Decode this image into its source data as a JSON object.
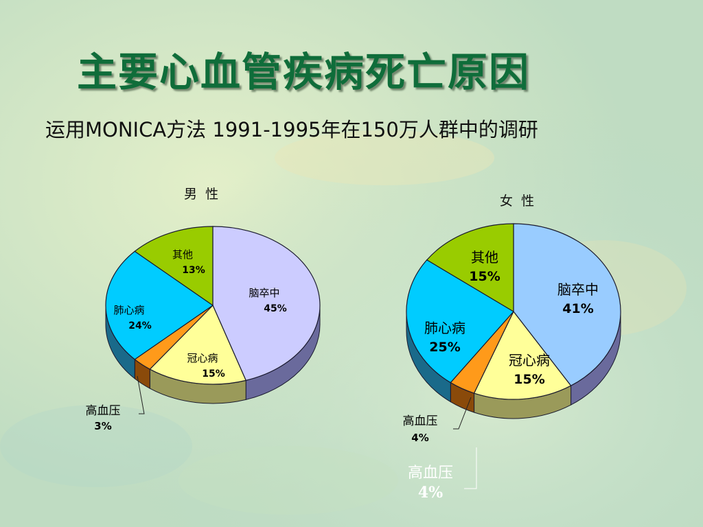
{
  "title": "主要心血管疾病死亡原因",
  "subtitle": "运用MONICA方法 1991-1995年在150万人群中的调研",
  "colors": {
    "title": "#0f6d3a",
    "stroke": "#1a1a2e",
    "callout_line": "#222222"
  },
  "chart_data": [
    {
      "type": "pie",
      "title": "男  性",
      "slices": [
        {
          "label": "脑卒中",
          "value": 45,
          "display": "45%",
          "color": "#ccccff",
          "side": "#6a6a9c"
        },
        {
          "label": "冠心病",
          "value": 15,
          "display": "15%",
          "color": "#ffff99",
          "side": "#9a9a5a"
        },
        {
          "label": "高血压",
          "value": 3,
          "display": "3%",
          "color": "#ff9a1a",
          "side": "#8a4a0a"
        },
        {
          "label": "肺心病",
          "value": 24,
          "display": "24%",
          "color": "#00ccff",
          "side": "#1a6a8a"
        },
        {
          "label": "其他",
          "value": 13,
          "display": "13%",
          "color": "#99cc00",
          "side": "#5a7a0a"
        }
      ]
    },
    {
      "type": "pie",
      "title": "女  性",
      "slices": [
        {
          "label": "脑卒中",
          "value": 41,
          "display": "41%",
          "color": "#99ccff",
          "side": "#6a6a9c"
        },
        {
          "label": "冠心病",
          "value": 15,
          "display": "15%",
          "color": "#ffff99",
          "side": "#9a9a5a"
        },
        {
          "label": "高血压",
          "value": 4,
          "display": "4%",
          "color": "#ff9a1a",
          "side": "#8a4a0a"
        },
        {
          "label": "肺心病",
          "value": 25,
          "display": "25%",
          "color": "#00ccff",
          "side": "#1a6a8a"
        },
        {
          "label": "其他",
          "value": 15,
          "display": "15%",
          "color": "#99cc00",
          "side": "#5a7a0a"
        }
      ]
    }
  ],
  "male_callout": {
    "label": "高血压",
    "value": "3%"
  },
  "female_callout": {
    "label": "高血压",
    "value": "4%"
  },
  "extra_callout": {
    "label": "高血压",
    "value": "4%"
  }
}
